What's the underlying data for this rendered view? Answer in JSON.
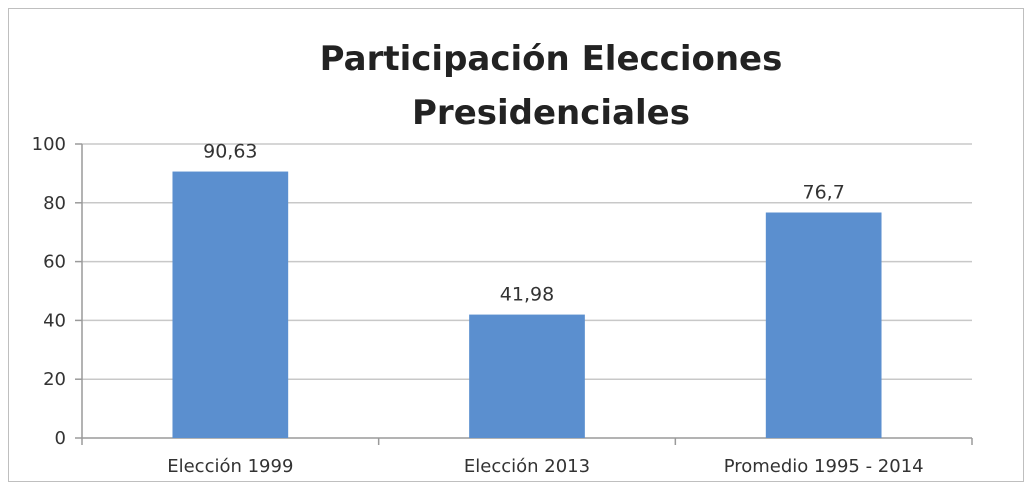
{
  "chart_data": {
    "type": "bar",
    "title": "Participación Elecciones Presidenciales",
    "title_lines": [
      "Participación Elecciones",
      "Presidenciales"
    ],
    "categories": [
      "Elección 1999",
      "Elección 2013",
      "Promedio 1995 - 2014"
    ],
    "values": [
      90.63,
      41.98,
      76.7
    ],
    "data_labels": [
      "90,63",
      "41,98",
      "76,7"
    ],
    "yticks": [
      0,
      20,
      40,
      60,
      80,
      100
    ],
    "ylim": [
      0,
      100
    ],
    "xlabel": "",
    "ylabel": "",
    "grid": true,
    "legend": "none",
    "bar_color": "#5b8fcf"
  }
}
